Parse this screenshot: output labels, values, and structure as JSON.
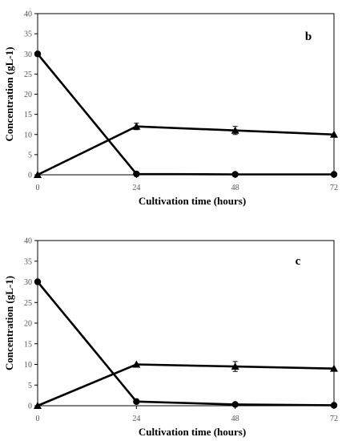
{
  "chart_data": [
    {
      "type": "line",
      "panel_label": "b",
      "xlabel": "Cultivation time (hours)",
      "ylabel": "Concentration (gL-1)",
      "x": [
        0,
        24,
        48,
        72
      ],
      "x_ticks": [
        "0",
        "24",
        "48",
        "72"
      ],
      "y_ticks": [
        "0",
        "5",
        "10",
        "15",
        "20",
        "25",
        "30",
        "35",
        "40"
      ],
      "ylim": [
        0,
        40
      ],
      "xlim": [
        0,
        72
      ],
      "grid": false,
      "series": [
        {
          "marker": "circle",
          "values": [
            30,
            0.2,
            0.1,
            0.1
          ],
          "errors": [
            0,
            0,
            0,
            0
          ]
        },
        {
          "marker": "triangle",
          "values": [
            0,
            12,
            11,
            10
          ],
          "errors": [
            0,
            0.8,
            1.0,
            0
          ]
        }
      ]
    },
    {
      "type": "line",
      "panel_label": "c",
      "xlabel": "Cultivation time (hours)",
      "ylabel": "Concentration (gL-1)",
      "x": [
        0,
        24,
        48,
        72
      ],
      "x_ticks": [
        "0",
        "24",
        "48",
        "72"
      ],
      "y_ticks": [
        "0",
        "5",
        "10",
        "15",
        "20",
        "25",
        "30",
        "35",
        "40"
      ],
      "ylim": [
        0,
        40
      ],
      "xlim": [
        0,
        72
      ],
      "grid": false,
      "series": [
        {
          "marker": "circle",
          "values": [
            30,
            1,
            0.3,
            0.1
          ],
          "errors": [
            0,
            0,
            0,
            0
          ]
        },
        {
          "marker": "triangle",
          "values": [
            0,
            10,
            9.5,
            9
          ],
          "errors": [
            0,
            0,
            1.2,
            0
          ]
        }
      ]
    }
  ]
}
